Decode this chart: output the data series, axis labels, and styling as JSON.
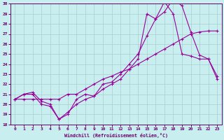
{
  "xlabel": "Windchill (Refroidissement éolien,°C)",
  "xlim": [
    -0.5,
    23.5
  ],
  "ylim": [
    18,
    30
  ],
  "xticks": [
    0,
    1,
    2,
    3,
    4,
    5,
    6,
    7,
    8,
    9,
    10,
    11,
    12,
    13,
    14,
    15,
    16,
    17,
    18,
    19,
    20,
    21,
    22,
    23
  ],
  "yticks": [
    18,
    19,
    20,
    21,
    22,
    23,
    24,
    25,
    26,
    27,
    28,
    29,
    30
  ],
  "bg_color": "#c8eef0",
  "line_color": "#990099",
  "grid_color": "#aacccc",
  "line1_x": [
    0,
    1,
    2,
    3,
    4,
    5,
    6,
    7,
    8,
    9,
    10,
    11,
    12,
    13,
    14,
    15,
    16,
    17,
    18,
    19,
    20,
    21,
    22,
    23
  ],
  "line1_y": [
    20.5,
    21.0,
    21.2,
    20.3,
    20.0,
    18.5,
    19.2,
    20.0,
    20.5,
    20.8,
    21.5,
    22.0,
    22.5,
    23.5,
    24.5,
    29.0,
    28.5,
    30.2,
    29.0,
    25.0,
    24.8,
    24.5,
    24.5,
    22.8
  ],
  "line2_x": [
    0,
    1,
    2,
    3,
    4,
    5,
    6,
    7,
    8,
    9,
    10,
    11,
    12,
    13,
    14,
    15,
    16,
    17,
    18,
    19,
    20,
    21,
    22,
    23
  ],
  "line2_y": [
    20.5,
    20.5,
    20.5,
    20.5,
    20.5,
    20.5,
    21.0,
    21.0,
    21.5,
    22.0,
    22.5,
    22.8,
    23.2,
    23.5,
    24.0,
    24.5,
    25.0,
    25.5,
    26.0,
    26.5,
    27.0,
    27.2,
    27.3,
    27.3
  ],
  "line3_x": [
    0,
    1,
    2,
    3,
    4,
    5,
    6,
    7,
    8,
    9,
    10,
    11,
    12,
    13,
    14,
    15,
    16,
    17,
    18,
    19,
    20,
    21,
    22,
    23
  ],
  "line3_y": [
    20.5,
    21.0,
    21.0,
    20.0,
    19.8,
    18.5,
    19.0,
    20.5,
    21.0,
    20.8,
    22.0,
    22.2,
    23.0,
    24.0,
    25.0,
    26.8,
    28.5,
    29.2,
    30.5,
    29.8,
    27.2,
    24.9,
    24.5,
    22.5
  ]
}
